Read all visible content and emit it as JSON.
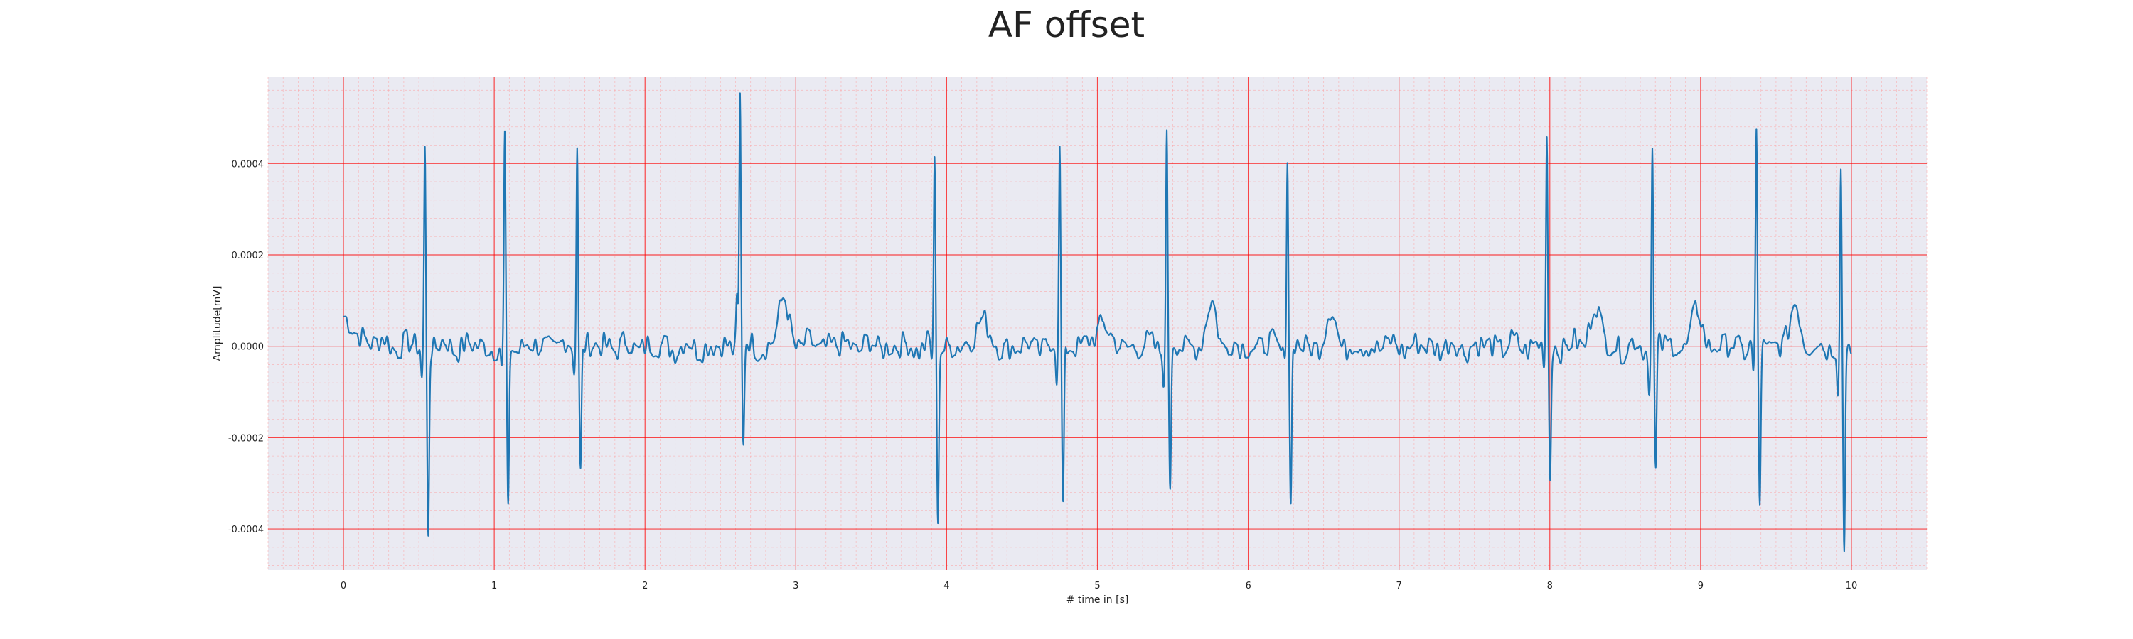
{
  "chart_data": {
    "type": "line",
    "title": "AF offset",
    "xlabel": "# time in [s]",
    "ylabel": "Amplitude[mV]",
    "xlim": [
      -0.5,
      10.5
    ],
    "ylim": [
      -0.00049,
      0.00059
    ],
    "xticks": [
      0,
      1,
      2,
      3,
      4,
      5,
      6,
      7,
      8,
      9,
      10
    ],
    "xtick_labels": [
      "0",
      "1",
      "2",
      "3",
      "4",
      "5",
      "6",
      "7",
      "8",
      "9",
      "10"
    ],
    "yticks": [
      0.0004,
      0.0002,
      0.0,
      -0.0002,
      -0.0004
    ],
    "ytick_labels": [
      "0.0004",
      "0.0002",
      "0.0000",
      "-0.0002",
      "-0.0004"
    ],
    "grid": "major and minor",
    "colors": {
      "line": "#1f77b4",
      "background": "#eaeaf2",
      "major_grid": "#ff0000",
      "minor_grid": "#ff9999"
    },
    "qrs_complexes": [
      {
        "t": 0.54,
        "q": -7e-05,
        "r": 0.00043,
        "s": -0.0004
      },
      {
        "t": 1.07,
        "q": -6e-05,
        "r": 0.00045,
        "s": -0.00038
      },
      {
        "t": 1.55,
        "q": -4e-05,
        "r": 0.00045,
        "s": -0.00027
      },
      {
        "t": 2.63,
        "q": 0.00011,
        "r": 0.00055,
        "s": -0.00021
      },
      {
        "t": 3.92,
        "q": -4e-05,
        "r": 0.0004,
        "s": -0.00037
      },
      {
        "t": 4.75,
        "q": -7e-05,
        "r": 0.00043,
        "s": -0.00035
      },
      {
        "t": 5.46,
        "q": -6e-05,
        "r": 0.00046,
        "s": -0.00031
      },
      {
        "t": 6.26,
        "q": -3e-05,
        "r": 0.00043,
        "s": -0.00035
      },
      {
        "t": 7.98,
        "q": -3e-05,
        "r": 0.00046,
        "s": -0.00029
      },
      {
        "t": 8.68,
        "q": -8e-05,
        "r": 0.00043,
        "s": -0.00028
      },
      {
        "t": 9.37,
        "q": -7e-05,
        "r": 0.00045,
        "s": -0.00035
      },
      {
        "t": 9.93,
        "q": -9e-05,
        "r": 0.00041,
        "s": -0.00045
      }
    ],
    "t_waves": [
      {
        "t": 2.92,
        "amp": 0.0001
      },
      {
        "t": 4.23,
        "amp": 7e-05
      },
      {
        "t": 5.03,
        "amp": 6e-05
      },
      {
        "t": 5.76,
        "amp": 9e-05
      },
      {
        "t": 6.55,
        "amp": 7e-05
      },
      {
        "t": 8.3,
        "amp": 9e-05
      },
      {
        "t": 8.98,
        "amp": 7e-05
      },
      {
        "t": 9.63,
        "amp": 9e-05
      }
    ],
    "t_start": 0.0,
    "t_end": 10.0,
    "start_value": 6e-05
  }
}
